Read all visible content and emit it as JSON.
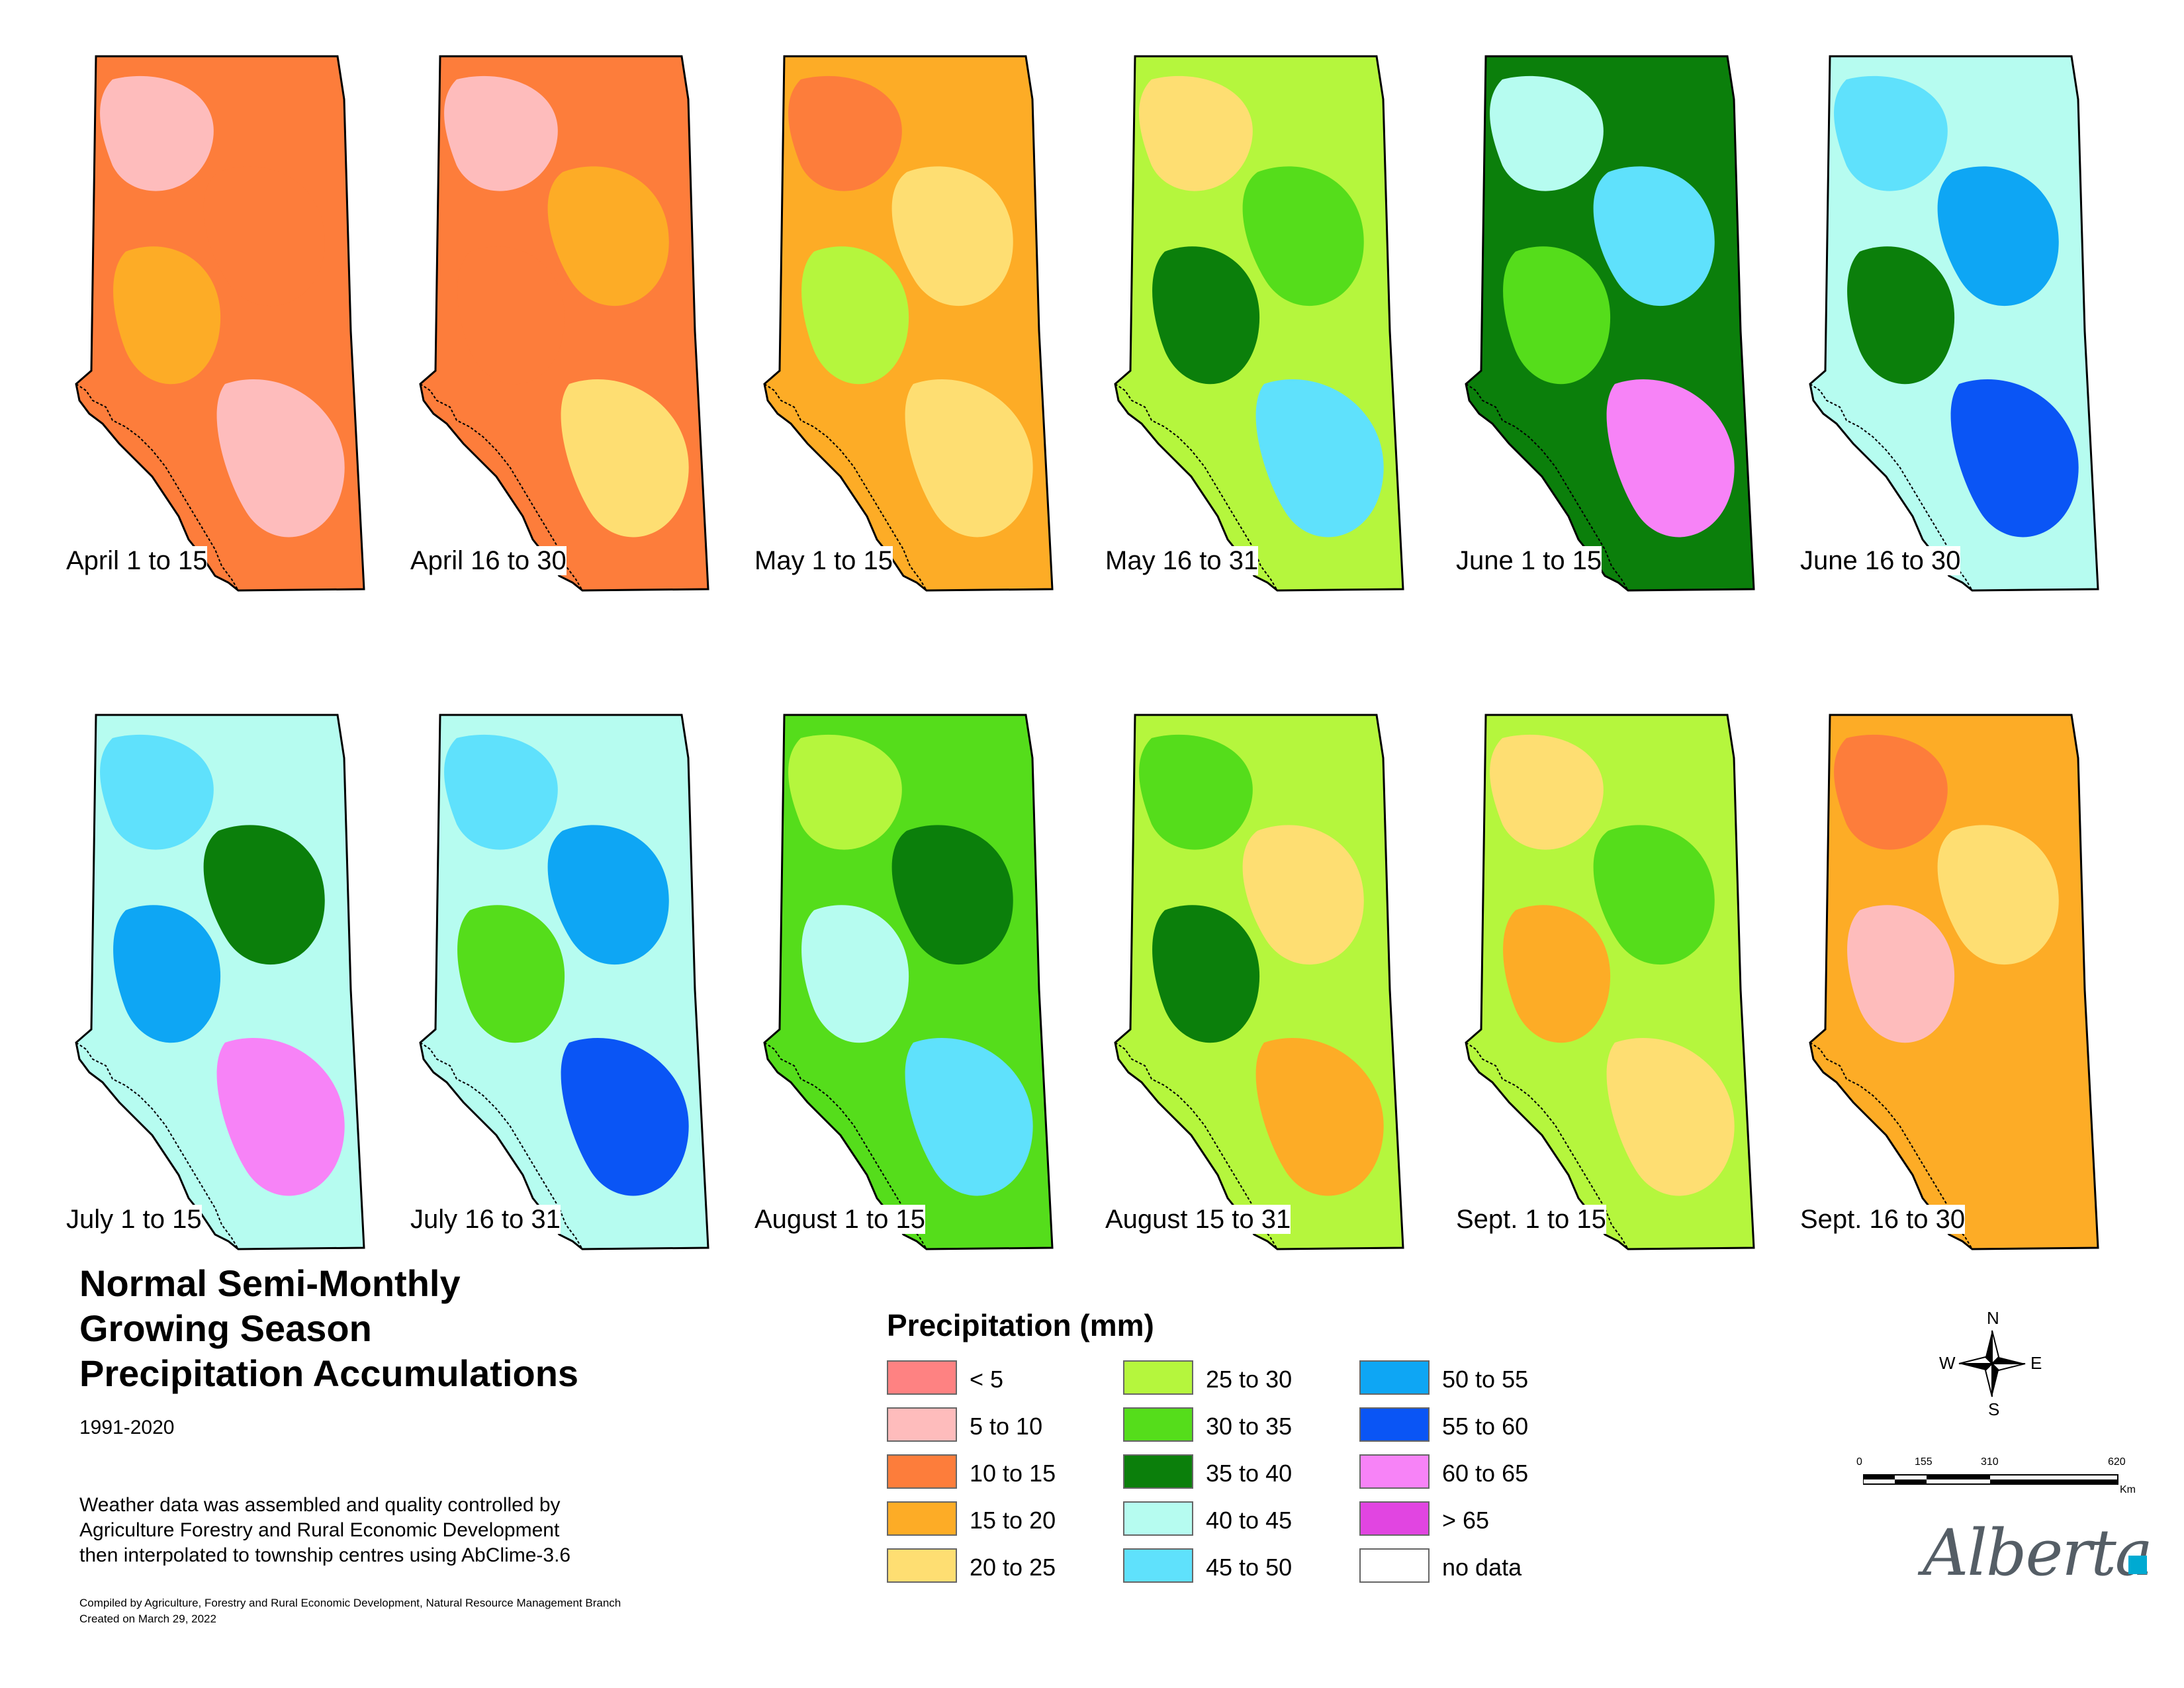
{
  "title_lines": [
    "Normal Semi-Monthly",
    "Growing Season",
    "Precipitation Accumulations"
  ],
  "period": "1991-2020",
  "description_lines": [
    "Weather data was assembled and quality controlled by",
    "Agriculture Forestry and Rural Economic Development",
    "then interpolated to township centres using AbClime-3.6"
  ],
  "credit_lines": [
    "Compiled by Agriculture, Forestry and Rural Economic Development, Natural Resource Management Branch",
    "Created on March 29, 2022"
  ],
  "legend": {
    "title": "Precipitation (mm)",
    "items": [
      {
        "label": "< 5",
        "color": "#fe8282"
      },
      {
        "label": "5 to 10",
        "color": "#febcbc"
      },
      {
        "label": "10 to 15",
        "color": "#fd7d3b"
      },
      {
        "label": "15 to 20",
        "color": "#fdac26"
      },
      {
        "label": "20 to 25",
        "color": "#fede72"
      },
      {
        "label": "25 to 30",
        "color": "#b5f63d"
      },
      {
        "label": "30 to 35",
        "color": "#55dd1b"
      },
      {
        "label": "35 to 40",
        "color": "#0b7f0b"
      },
      {
        "label": "40 to 45",
        "color": "#b6fcf0"
      },
      {
        "label": "45 to 50",
        "color": "#5fe1fc"
      },
      {
        "label": "50 to 55",
        "color": "#0ea6f4"
      },
      {
        "label": "55 to 60",
        "color": "#0a55f5"
      },
      {
        "label": "60 to 65",
        "color": "#f783f7"
      },
      {
        "label": "> 65",
        "color": "#e145e1"
      },
      {
        "label": "no data",
        "color": "#ffffff"
      }
    ]
  },
  "maps": [
    {
      "label": "April 1 to 15",
      "base": 2,
      "patches": [
        1,
        2,
        3,
        1
      ]
    },
    {
      "label": "April 16 to 30",
      "base": 2,
      "patches": [
        1,
        3,
        2,
        4
      ]
    },
    {
      "label": "May 1 to 15",
      "base": 3,
      "patches": [
        2,
        4,
        5,
        4
      ]
    },
    {
      "label": "May 16 to 31",
      "base": 5,
      "patches": [
        4,
        6,
        7,
        9
      ]
    },
    {
      "label": "June 1 to 15",
      "base": 7,
      "patches": [
        8,
        9,
        6,
        12
      ]
    },
    {
      "label": "June 16 to 30",
      "base": 8,
      "patches": [
        9,
        10,
        7,
        11
      ]
    },
    {
      "label": "July 1 to 15",
      "base": 8,
      "patches": [
        9,
        7,
        10,
        12
      ]
    },
    {
      "label": "July 16 to 31",
      "base": 8,
      "patches": [
        9,
        10,
        6,
        11
      ]
    },
    {
      "label": "August 1 to 15",
      "base": 6,
      "patches": [
        5,
        7,
        8,
        9
      ]
    },
    {
      "label": "August 15 to 31",
      "base": 5,
      "patches": [
        6,
        4,
        7,
        3
      ]
    },
    {
      "label": "Sept. 1 to 15",
      "base": 5,
      "patches": [
        4,
        6,
        3,
        4
      ]
    },
    {
      "label": "Sept. 16 to 30",
      "base": 3,
      "patches": [
        2,
        4,
        1,
        3
      ]
    }
  ],
  "compass": {
    "n": "N",
    "s": "S",
    "e": "E",
    "w": "W"
  },
  "scale": {
    "ticks": [
      "0",
      "155",
      "310",
      "620"
    ],
    "unit": "Km"
  },
  "logo_text": "Alberta"
}
